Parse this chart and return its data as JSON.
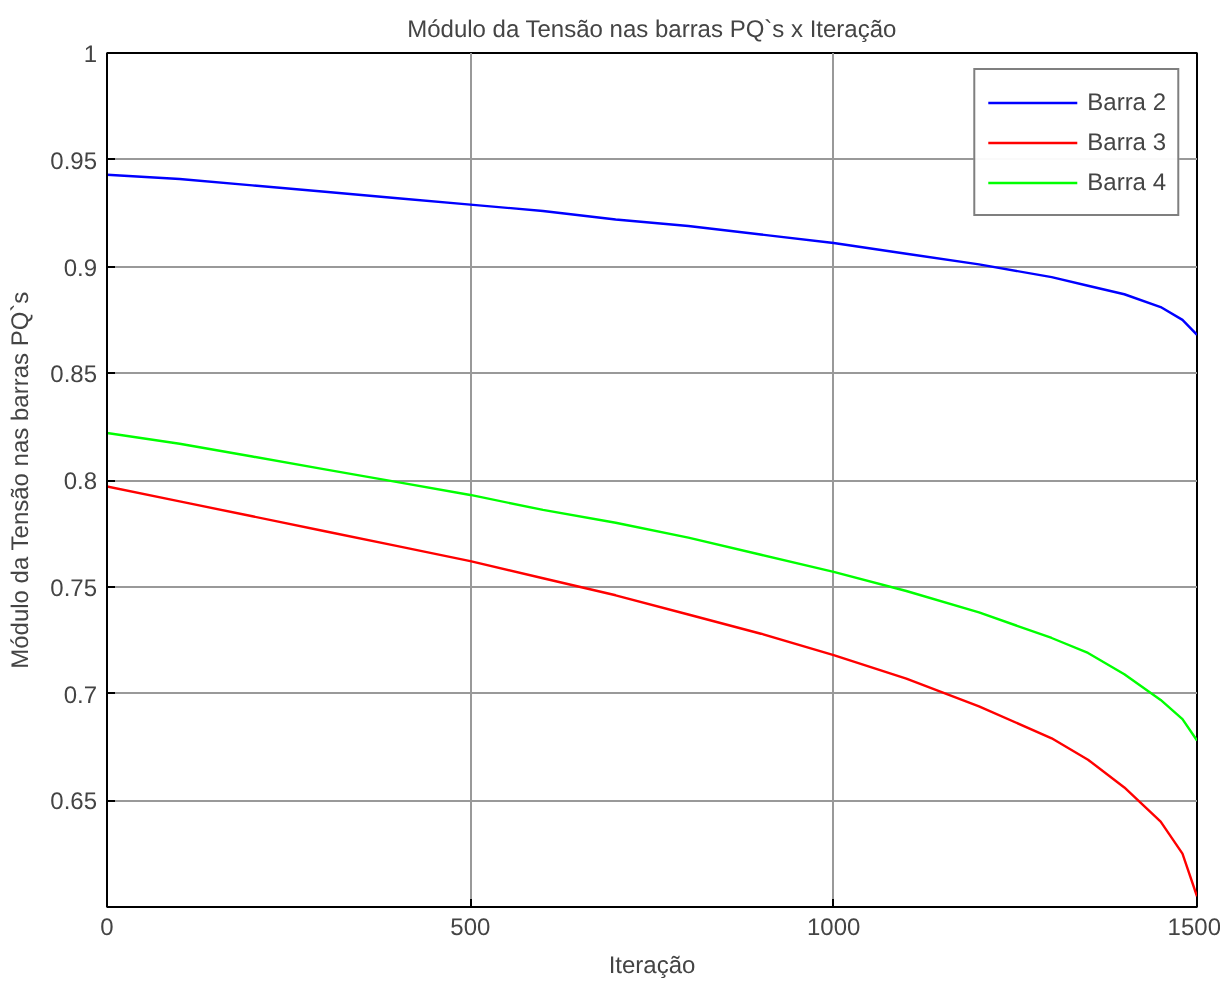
{
  "chart_data": {
    "type": "line",
    "title": "Módulo da Tensão nas barras PQ`s x Iteração",
    "xlabel": "Iteração",
    "ylabel": "Módulo da Tensão nas barras PQ`s",
    "x": [
      0,
      100,
      200,
      300,
      400,
      500,
      600,
      700,
      800,
      900,
      1000,
      1100,
      1200,
      1300,
      1350,
      1400,
      1450,
      1480,
      1500
    ],
    "series": [
      {
        "name": "Barra 2",
        "color": "#0000ff",
        "values": [
          0.943,
          0.941,
          0.938,
          0.935,
          0.932,
          0.929,
          0.926,
          0.922,
          0.919,
          0.915,
          0.911,
          0.906,
          0.901,
          0.895,
          0.891,
          0.887,
          0.881,
          0.875,
          0.868
        ]
      },
      {
        "name": "Barra 3",
        "color": "#ff0000",
        "values": [
          0.797,
          0.79,
          0.783,
          0.776,
          0.769,
          0.762,
          0.754,
          0.746,
          0.737,
          0.728,
          0.718,
          0.707,
          0.694,
          0.679,
          0.669,
          0.656,
          0.64,
          0.625,
          0.605
        ]
      },
      {
        "name": "Barra 4",
        "color": "#00ff00",
        "values": [
          0.822,
          0.817,
          0.811,
          0.805,
          0.799,
          0.793,
          0.786,
          0.78,
          0.773,
          0.765,
          0.757,
          0.748,
          0.738,
          0.726,
          0.719,
          0.709,
          0.697,
          0.688,
          0.678
        ]
      }
    ],
    "xlim": [
      0,
      1500
    ],
    "ylim": [
      0.6,
      1
    ],
    "xticks": [
      0,
      500,
      1000,
      1500
    ],
    "yticks": [
      0.65,
      0.7,
      0.75,
      0.8,
      0.85,
      0.9,
      0.95,
      1
    ],
    "grid": true,
    "legend": "top right",
    "line_style": "solid",
    "marker": "none"
  }
}
